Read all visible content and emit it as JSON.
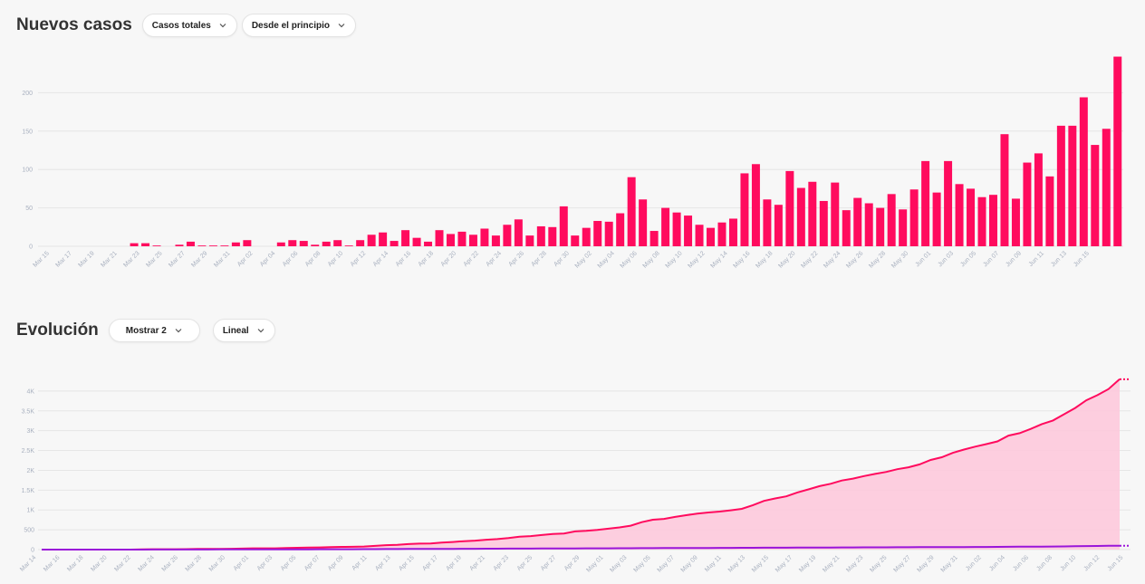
{
  "colors": {
    "accent": "#ff0b5e",
    "area_fill": "#fdc9dc",
    "secondary_line": "#9a15d9",
    "grid": "#e6e6e6"
  },
  "header1": {
    "title": "Nuevos casos",
    "dropdown1": {
      "label": "Casos totales",
      "icon": "chevron-down-icon"
    },
    "dropdown2": {
      "label": "Desde el principio",
      "icon": "chevron-down-icon"
    }
  },
  "header2": {
    "title": "Evolución",
    "dropdown1": {
      "label": "Mostrar 2",
      "icon": "chevron-down-icon"
    },
    "dropdown2": {
      "label": "Lineal",
      "icon": "chevron-down-icon"
    }
  },
  "chart_data": [
    {
      "type": "bar",
      "title": "Nuevos casos",
      "ylim": [
        0,
        250
      ],
      "yticks": [
        0,
        50,
        100,
        150,
        200
      ],
      "grid": true,
      "x_tick_labels": [
        "Mar 15",
        "Mar 17",
        "Mar 19",
        "Mar 21",
        "Mar 23",
        "Mar 25",
        "Mar 27",
        "Mar 29",
        "Mar 31",
        "Apr 02",
        "Apr 04",
        "Apr 06",
        "Apr 08",
        "Apr 10",
        "Apr 12",
        "Apr 14",
        "Apr 16",
        "Apr 18",
        "Apr 20",
        "Apr 22",
        "Apr 24",
        "Apr 26",
        "Apr 28",
        "Apr 30",
        "May 02",
        "May 04",
        "May 06",
        "May 08",
        "May 10",
        "May 12",
        "May 14",
        "May 16",
        "May 18",
        "May 20",
        "May 22",
        "May 24",
        "May 26",
        "May 28",
        "May 30",
        "Jun 01",
        "Jun 03",
        "Jun 05",
        "Jun 07",
        "Jun 09",
        "Jun 11",
        "Jun 13",
        "Jun 15"
      ],
      "values": [
        0,
        0,
        0,
        0,
        0,
        0,
        0,
        0,
        4,
        4,
        1,
        0,
        2,
        6,
        1,
        1,
        1,
        5,
        8,
        0,
        0,
        5,
        8,
        7,
        2,
        6,
        8,
        1,
        8,
        15,
        18,
        7,
        21,
        11,
        6,
        21,
        16,
        19,
        15,
        23,
        14,
        28,
        35,
        14,
        26,
        25,
        52,
        14,
        24,
        33,
        32,
        43,
        90,
        61,
        20,
        50,
        44,
        40,
        28,
        24,
        31,
        36,
        95,
        107,
        61,
        54,
        98,
        76,
        84,
        59,
        83,
        47,
        63,
        56,
        50,
        68,
        48,
        74,
        111,
        70,
        111,
        81,
        75,
        64,
        67,
        146,
        62,
        109,
        121,
        91,
        157,
        157,
        194,
        132,
        153,
        247
      ]
    },
    {
      "type": "area",
      "title": "Evolución",
      "ylim": [
        0,
        4500
      ],
      "yticks": [
        0,
        500,
        1000,
        1500,
        2000,
        2500,
        3000,
        3500,
        4000
      ],
      "ytick_labels": [
        "0",
        "500",
        "1K",
        "1.5K",
        "2K",
        "2.5K",
        "3K",
        "3.5K",
        "4K"
      ],
      "grid": true,
      "x_tick_labels": [
        "Mar 14",
        "Mar 16",
        "Mar 18",
        "Mar 20",
        "Mar 22",
        "Mar 24",
        "Mar 26",
        "Mar 28",
        "Mar 30",
        "Apr 01",
        "Apr 03",
        "Apr 05",
        "Apr 07",
        "Apr 09",
        "Apr 11",
        "Apr 13",
        "Apr 15",
        "Apr 17",
        "Apr 19",
        "Apr 21",
        "Apr 23",
        "Apr 25",
        "Apr 27",
        "Apr 29",
        "May 01",
        "May 03",
        "May 05",
        "May 07",
        "May 09",
        "May 11",
        "May 13",
        "May 15",
        "May 17",
        "May 19",
        "May 21",
        "May 23",
        "May 25",
        "May 27",
        "May 29",
        "May 31",
        "Jun 02",
        "Jun 04",
        "Jun 06",
        "Jun 08",
        "Jun 10",
        "Jun 12",
        "Jun 15"
      ],
      "series": [
        {
          "values": [
            0,
            0,
            0,
            0,
            0,
            0,
            0,
            0,
            0,
            4,
            8,
            9,
            9,
            11,
            17,
            18,
            19,
            20,
            25,
            33,
            33,
            33,
            38,
            46,
            53,
            55,
            61,
            69,
            70,
            78,
            93,
            111,
            118,
            139,
            150,
            156,
            177,
            193,
            212,
            227,
            250,
            264,
            292,
            327,
            341,
            367,
            392,
            406,
            458,
            472,
            496,
            528,
            560,
            603,
            693,
            754,
            774,
            824,
            868,
            908,
            936,
            960,
            991,
            1027,
            1122,
            1229,
            1290,
            1344,
            1442,
            1518,
            1602,
            1661,
            1744,
            1791,
            1854,
            1910,
            1960,
            2028,
            2076,
            2150,
            2261,
            2331,
            2442,
            2523,
            2598,
            2662,
            2729,
            2875,
            2937,
            3046,
            3167,
            3258,
            3415,
            3572,
            3766,
            3898,
            4051,
            4298
          ]
        },
        {
          "values": [
            0,
            0,
            0,
            0,
            0,
            1,
            1,
            1,
            1,
            1,
            2,
            2,
            2,
            3,
            3,
            3,
            4,
            4,
            4,
            5,
            5,
            6,
            6,
            7,
            7,
            8,
            9,
            9,
            10,
            11,
            12,
            13,
            14,
            15,
            16,
            17,
            18,
            19,
            20,
            21,
            22,
            23,
            24,
            25,
            26,
            27,
            28,
            29,
            30,
            31,
            32,
            33,
            34,
            35,
            36,
            37,
            38,
            39,
            40,
            41,
            42,
            43,
            44,
            45,
            46,
            47,
            48,
            49,
            50,
            51,
            52,
            53,
            54,
            55,
            56,
            57,
            58,
            59,
            60,
            61,
            62,
            63,
            64,
            65,
            66,
            67,
            68,
            70,
            72,
            74,
            76,
            78,
            80,
            84,
            88,
            92,
            95,
            98
          ]
        }
      ]
    }
  ]
}
